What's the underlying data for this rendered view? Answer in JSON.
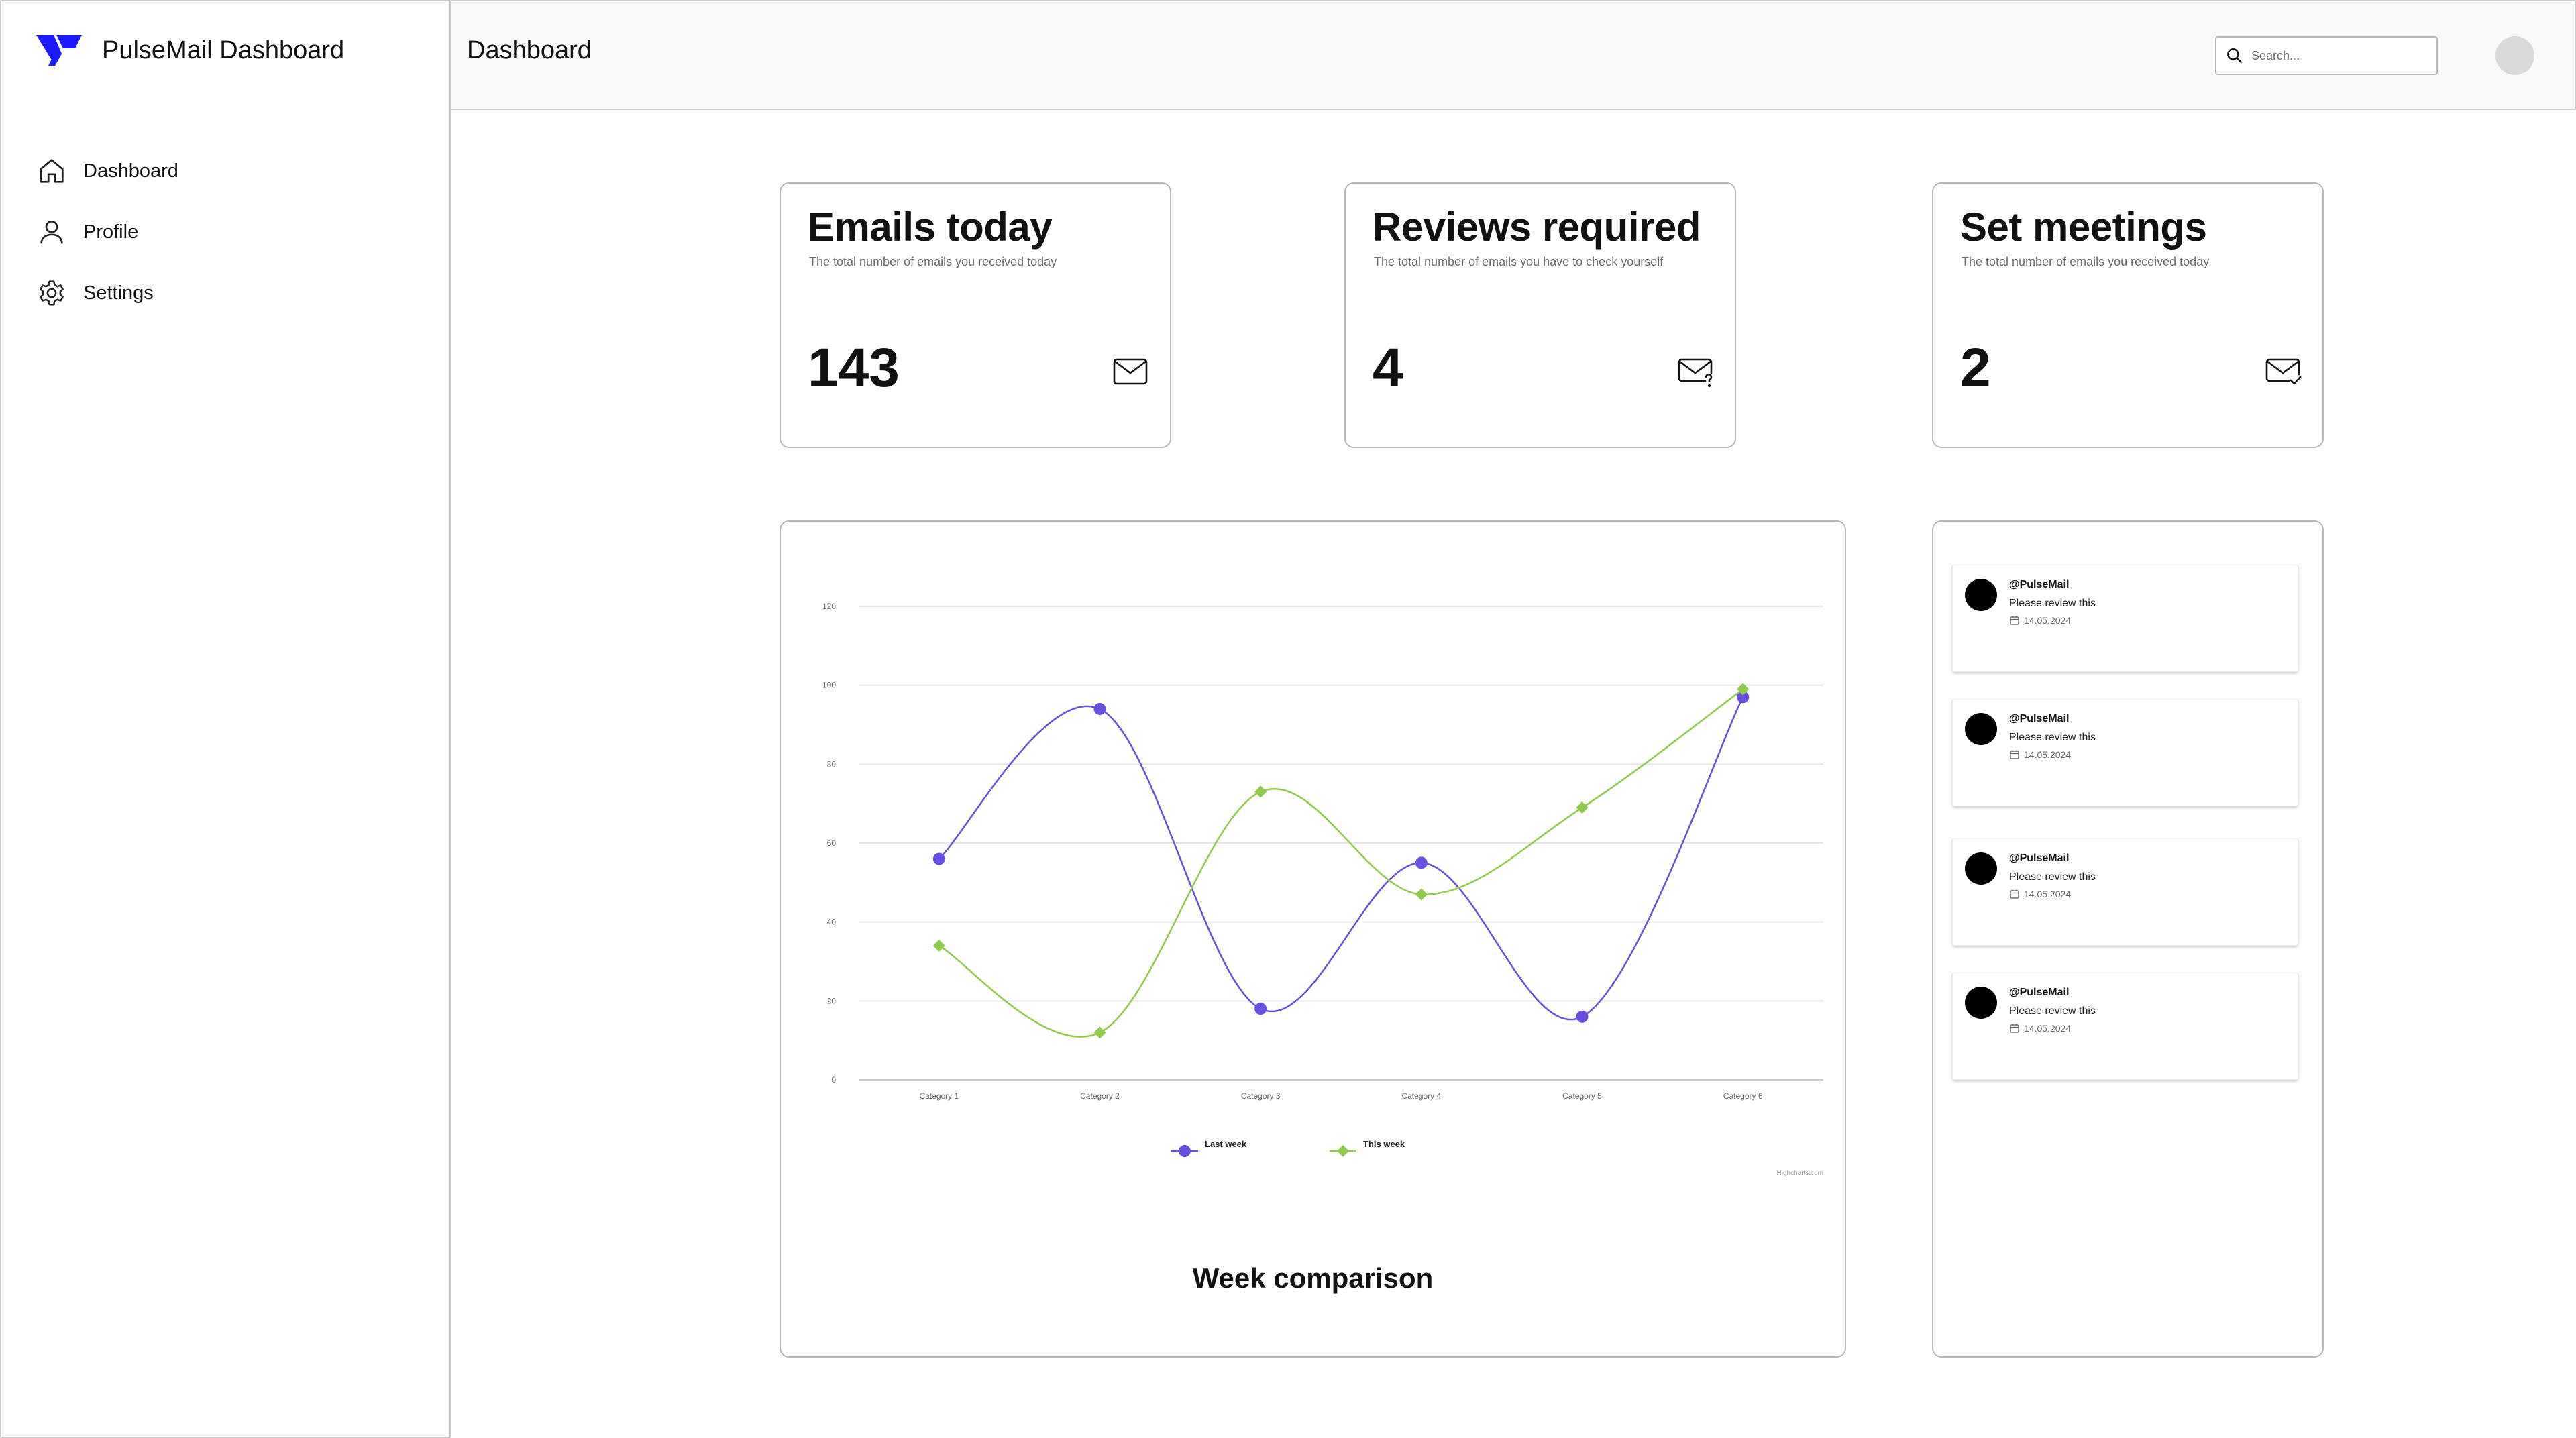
{
  "app": {
    "name": "PulseMail Dashboard",
    "brand_color": "#1a1aff"
  },
  "sidebar": {
    "items": [
      {
        "label": "Dashboard",
        "icon": "home-icon"
      },
      {
        "label": "Profile",
        "icon": "user-icon"
      },
      {
        "label": "Settings",
        "icon": "gear-icon"
      }
    ]
  },
  "header": {
    "title": "Dashboard",
    "search_placeholder": "Search...",
    "search_icon": "search-icon"
  },
  "stats": [
    {
      "title": "Emails today",
      "subtitle": "The total number of emails you received today",
      "value": "143",
      "icon": "mail-icon"
    },
    {
      "title": "Reviews required",
      "subtitle": "The total number of emails you have to check yourself",
      "value": "4",
      "icon": "mail-question-icon"
    },
    {
      "title": "Set meetings",
      "subtitle": "The total number of emails you received today",
      "value": "2",
      "icon": "mail-check-icon"
    }
  ],
  "chart_caption": "Week comparison",
  "chart_data": {
    "type": "line",
    "categories": [
      "Category 1",
      "Category 2",
      "Category 3",
      "Category 4",
      "Category 5",
      "Category 6"
    ],
    "series": [
      {
        "name": "Last week",
        "values": [
          56,
          94,
          18,
          55,
          16,
          97
        ],
        "color": "#6a4ee0",
        "marker": "circle"
      },
      {
        "name": "This week",
        "values": [
          34,
          12,
          73,
          47,
          69,
          99
        ],
        "color": "#8fcb4a",
        "marker": "diamond"
      }
    ],
    "y_ticks": [
      "0",
      "20",
      "40",
      "60",
      "80",
      "100",
      "120"
    ],
    "ylim": [
      0,
      120
    ],
    "grid": true,
    "legend_position": "bottom",
    "credit": "Highcharts.com"
  },
  "notifications": [
    {
      "user": "@PulseMail",
      "message": "Please review this",
      "date": "14.05.2024"
    },
    {
      "user": "@PulseMail",
      "message": "Please review this",
      "date": "14.05.2024"
    },
    {
      "user": "@PulseMail",
      "message": "Please review this",
      "date": "14.05.2024"
    },
    {
      "user": "@PulseMail",
      "message": "Please review this",
      "date": "14.05.2024"
    }
  ]
}
